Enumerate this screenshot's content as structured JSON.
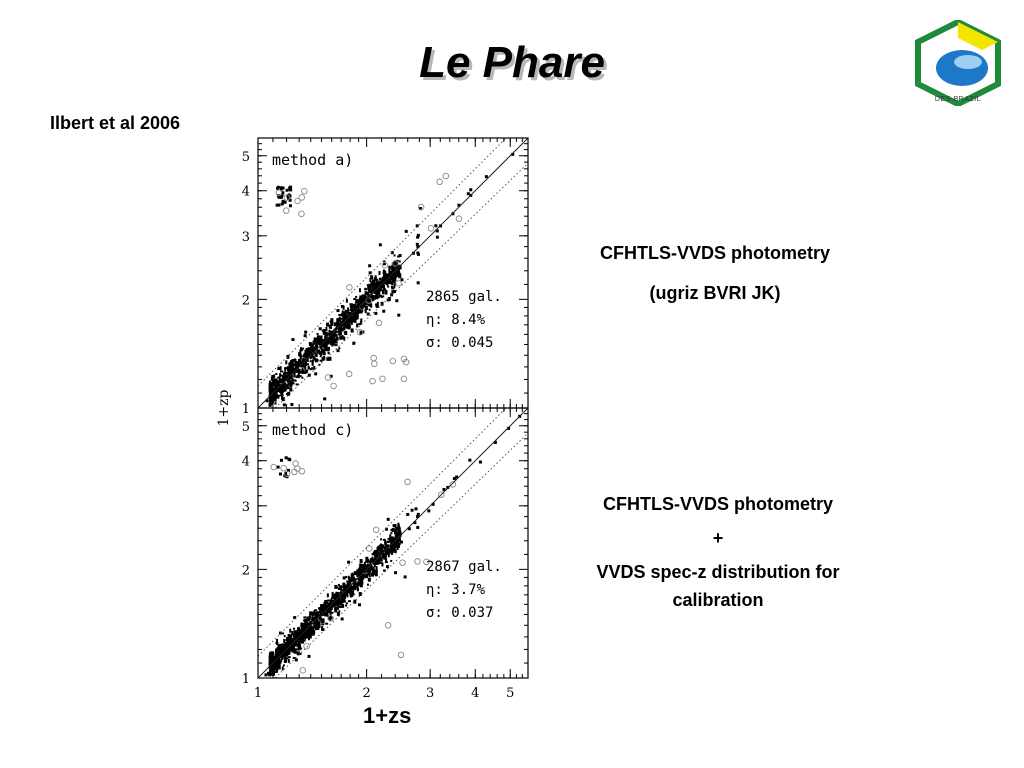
{
  "slide": {
    "title": "Le Phare",
    "reference": "Ilbert et al 2006",
    "logo_text": "DES-BRAZIL",
    "caption_top": [
      "CFHTLS-VVDS photometry",
      "(ugriz BVRI JK)"
    ],
    "caption_bottom": [
      "CFHTLS-VVDS photometry",
      "+",
      "VVDS spec-z distribution for",
      "calibration"
    ],
    "xlabel": "1+zs"
  },
  "colors": {
    "logo_yellow": "#f2e600",
    "logo_green": "#1f8a3c",
    "logo_blue": "#1e78c8",
    "dotted": "#555555"
  },
  "chart_data": [
    {
      "type": "scatter",
      "panel_label": "method a)",
      "xlabel": "1+zs",
      "ylabel": "1+zp",
      "scale": "log",
      "xlim": [
        1,
        5.6
      ],
      "ylim": [
        1,
        5.6
      ],
      "y_ticks": [
        "1",
        "2",
        "3",
        "4",
        "5"
      ],
      "stats": {
        "ngal": "2865 gal.",
        "eta": "8.4%",
        "sigma": "0.045"
      },
      "sigma": 0.045,
      "lines": [
        "1:1 solid",
        "±0.15(1+zs) dotted"
      ]
    },
    {
      "type": "scatter",
      "panel_label": "method c)",
      "xlabel": "1+zs",
      "ylabel": "1+zp",
      "scale": "log",
      "xlim": [
        1,
        5.6
      ],
      "ylim": [
        1,
        5.6
      ],
      "x_ticks": [
        "1",
        "2",
        "3",
        "4",
        "5"
      ],
      "y_ticks": [
        "1",
        "2",
        "3",
        "4",
        "5"
      ],
      "stats": {
        "ngal": "2867 gal.",
        "eta": "3.7%",
        "sigma": "0.037"
      },
      "sigma": 0.037,
      "lines": [
        "1:1 solid",
        "±0.15(1+zs) dotted"
      ]
    }
  ]
}
